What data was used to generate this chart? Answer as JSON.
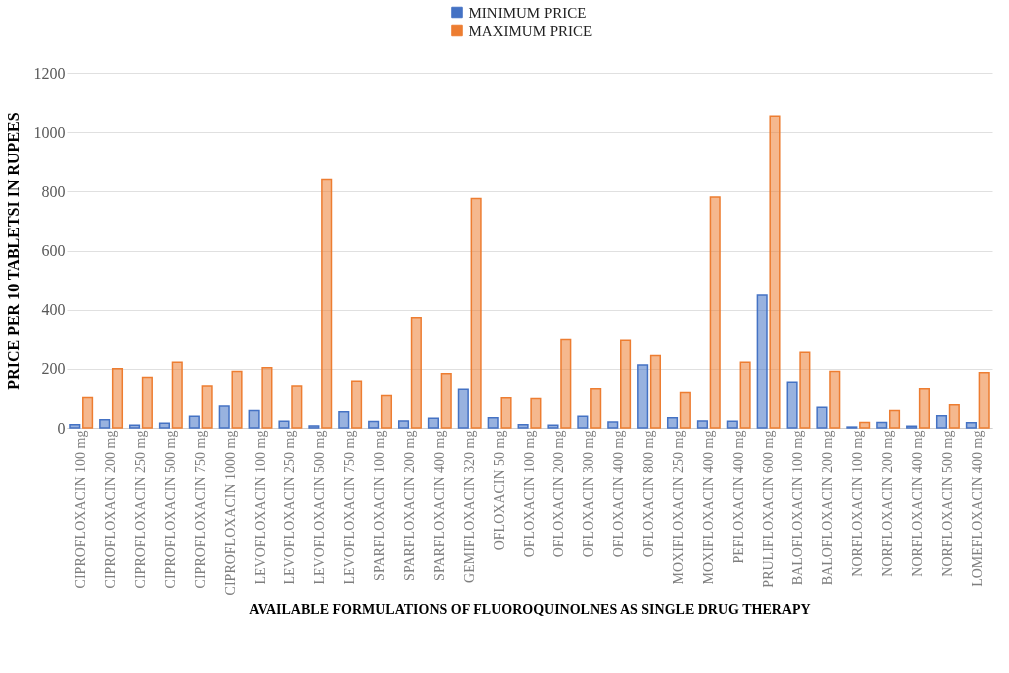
{
  "chart_data": {
    "type": "bar",
    "xlabel": "AVAILABLE FORMULATIONS OF FLUOROQUINOLNES AS SINGLE DRUG THERAPY",
    "ylabel": "PRICE PER 10 TABLETSI IN RUPEES",
    "categories": [
      "CIPROFLOXACIN 100 mg",
      "CIPROFLOXACIN 200 mg",
      "CIPROFLOXACIN 250 mg",
      "CIPROFLOXACIN 500 mg",
      "CIPROFLOXACIN 750 mg",
      "CIPROFLOXACIN 1000 mg",
      "LEVOFLOXACIN 100 mg",
      "LEVOFLOXACIN 250 mg",
      "LEVOFLOXACIN 500 mg",
      "LEVOFLOXACIN 750 mg",
      "SPARFLOXACIN 100 mg",
      "SPARFLOXACIN 200 mg",
      "SPARFLOXACIN 400 mg",
      "GEMIFLOXACIN 320 mg",
      "OFLOXACIN 50 mg",
      "OFLOXACIN 100 mg",
      "OFLOXACIN 200 mg",
      "OFLOXACIN 300 mg",
      "OFLOXACIN 400 mg",
      "OFLOXACIN 800 mg",
      "MOXIFLOXACIN 250 mg",
      "MOXIFLOXACIN 400 mg",
      "PEFLOXACIN 400 mg",
      "PRULIFLOXACIN 600 mg",
      "BALOFLOXACIN 100 mg",
      "BALOFLOXACIN 200 mg",
      "NORFLOXACIN 100 mg",
      "NORFLOXACIN 200 mg",
      "NORFLOXACIN 400 mg",
      "NORFLOXACIN 500 mg",
      "LOMEFLOXACIN 400 mg"
    ],
    "series": [
      {
        "name": "MINIMUM PRICE",
        "color": "#4472c4",
        "values": [
          11,
          28,
          9,
          16,
          40,
          74,
          59,
          23,
          7,
          55,
          22,
          24,
          33,
          131,
          35,
          11,
          9,
          40,
          20,
          213,
          35,
          24,
          23,
          450,
          155,
          70,
          3,
          19,
          6,
          41,
          18
        ]
      },
      {
        "name": "MAXIMUM PRICE",
        "color": "#ed7d31",
        "values": [
          103,
          200,
          171,
          222,
          142,
          191,
          204,
          142,
          840,
          158,
          110,
          373,
          183,
          776,
          102,
          100,
          299,
          133,
          297,
          245,
          120,
          781,
          222,
          1054,
          256,
          191,
          19,
          59,
          133,
          79,
          187
        ]
      }
    ],
    "ylim": [
      0,
      1200
    ],
    "yticks": [
      0,
      200,
      400,
      600,
      800,
      1000,
      1200
    ],
    "grid": "y",
    "legend": "top"
  }
}
